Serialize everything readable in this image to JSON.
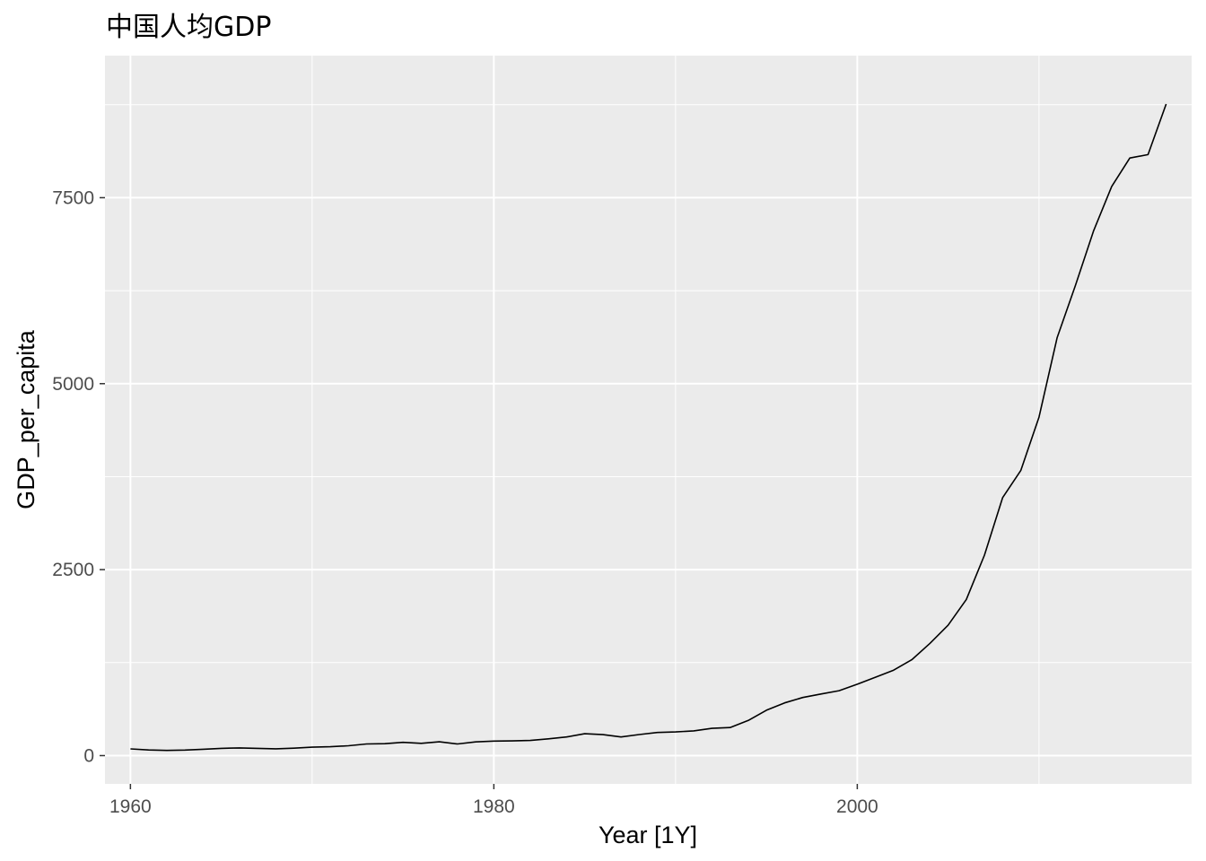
{
  "chart_data": {
    "type": "line",
    "title": "中国人均GDP",
    "xlabel": "Year [1Y]",
    "ylabel": "GDP_per_capita",
    "xlim": [
      1958.6,
      2018.4
    ],
    "ylim": [
      -380,
      9410
    ],
    "x_ticks": [
      1960,
      1980,
      2000
    ],
    "x_tick_labels": [
      "1960",
      "1980",
      "2000"
    ],
    "x_minor_ticks": [
      1970,
      1990,
      2010
    ],
    "y_ticks": [
      0,
      2500,
      5000,
      7500
    ],
    "y_tick_labels": [
      "0",
      "2500",
      "5000",
      "7500"
    ],
    "y_minor_ticks": [
      1250,
      3750,
      6250,
      8750
    ],
    "grid": true,
    "background": "#ebebeb",
    "gridline_color": "#ffffff",
    "line_color": "#000000",
    "series": [
      {
        "x": [
          1960,
          1961,
          1962,
          1963,
          1964,
          1965,
          1966,
          1967,
          1968,
          1969,
          1970,
          1971,
          1972,
          1973,
          1974,
          1975,
          1976,
          1977,
          1978,
          1979,
          1980,
          1981,
          1982,
          1983,
          1984,
          1985,
          1986,
          1987,
          1988,
          1989,
          1990,
          1991,
          1992,
          1993,
          1994,
          1995,
          1996,
          1997,
          1998,
          1999,
          2000,
          2001,
          2002,
          2003,
          2004,
          2005,
          2006,
          2007,
          2008,
          2009,
          2010,
          2011,
          2012,
          2013,
          2014,
          2015,
          2016,
          2017
        ],
        "y": [
          90,
          76,
          70,
          74,
          85,
          98,
          104,
          97,
          91,
          100,
          113,
          119,
          132,
          157,
          160,
          178,
          165,
          185,
          156,
          184,
          195,
          197,
          203,
          225,
          250,
          294,
          282,
          251,
          283,
          311,
          318,
          333,
          366,
          377,
          473,
          610,
          709,
          781,
          828,
          873,
          959,
          1053,
          1149,
          1289,
          1509,
          1753,
          2099,
          2694,
          3468,
          3832,
          4550,
          5618,
          6317,
          7051,
          7651,
          8033,
          8079,
          8759
        ]
      }
    ]
  }
}
